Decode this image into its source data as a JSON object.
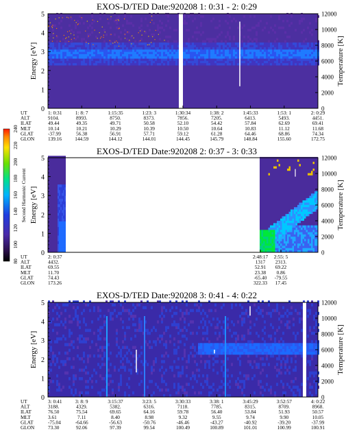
{
  "colorbar": {
    "label": "Second Harmonic Current",
    "ticks": [
      "80",
      "100",
      "120",
      "140",
      "160",
      "180",
      "200",
      "220",
      "240"
    ]
  },
  "panels": [
    {
      "title": "EXOS-D/TED   Date:920208  1: 0:31 - 2: 0:29",
      "ylabel": "Energy [eV]",
      "y2label": "Temperature [K]",
      "yticks": [
        "0",
        "1",
        "2",
        "3",
        "4",
        "5"
      ],
      "y2ticks": [
        "0",
        "2000",
        "4000",
        "6000",
        "8000",
        "10000",
        "12000"
      ],
      "eph_labels": [
        "UT",
        "ALT",
        "ILAT",
        "MLT",
        "GLAT",
        "GLON"
      ],
      "eph": [
        [
          "1: 0:31",
          "9104.",
          "49.44",
          "10.14",
          "-37.99",
          "139.16"
        ],
        [
          "1: 8: 7",
          "8993.",
          "49.35",
          "10.21",
          "56.38",
          "144.59"
        ],
        [
          "1:15:35",
          "8750.",
          "49.71",
          "10.29",
          "56.91",
          "144.12"
        ],
        [
          "1:23: 3",
          "8373.",
          "50.58",
          "10.39",
          "57.71",
          "144.01"
        ],
        [
          "1:30:34",
          "7856.",
          "52.10",
          "10.50",
          "59.12",
          "144.45"
        ],
        [
          "1:38: 2",
          "7205.",
          "54.42",
          "10.64",
          "61.28",
          "145.79"
        ],
        [
          "1:45:33",
          "6413.",
          "57.84",
          "10.83",
          "64.46",
          "148.84"
        ],
        [
          "1:53: 1",
          "5493.",
          "62.69",
          "11.12",
          "68.86",
          "155.60"
        ],
        [
          "2: 0:29",
          "4451.",
          "69.41",
          "11.68",
          "74.34",
          "172.75"
        ]
      ]
    },
    {
      "title": "EXOS-D/TED   Date:920208  2: 0:37 - 3: 0:33",
      "ylabel": "Energy [eV]",
      "y2label": "Temperature [K]",
      "yticks": [
        "0",
        "1",
        "2",
        "3",
        "4",
        "5"
      ],
      "y2ticks": [
        "0",
        "2000",
        "4000",
        "6000",
        "8000",
        "10000",
        "12000"
      ],
      "eph_labels": [
        "UT",
        "ALT",
        "ILAT",
        "MLT",
        "GLAT",
        "GLON"
      ],
      "eph": [
        [
          "2: 0:37",
          "4432.",
          "69.55",
          "11.70",
          "74.43",
          "173.26"
        ],
        [
          "2:48:17",
          "1317",
          "52.91",
          "23.38",
          "-65.40",
          "322.33"
        ],
        [
          "2:55: 5",
          "2313.",
          "69.22",
          "0.86",
          "-79.55",
          "17.45"
        ]
      ]
    },
    {
      "title": "EXOS-D/TED   Date:920208  3: 0:41 - 4: 0:22",
      "ylabel": "Energy [eV]",
      "y2label": "Temperature [K]",
      "yticks": [
        "0",
        "1",
        "2",
        "3",
        "4",
        "5"
      ],
      "y2ticks": [
        "0",
        "2000",
        "4000",
        "6000",
        "8000",
        "10000",
        "12000"
      ],
      "eph_labels": [
        "UT",
        "ALT",
        "ILAT",
        "MLT",
        "GLAT",
        "GLON"
      ],
      "eph": [
        [
          "3: 0:41",
          "3188.",
          "76.50",
          "3.61",
          "-75.04",
          "73.30"
        ],
        [
          "3: 8: 9",
          "4329.",
          "75.54",
          "7.11",
          "-64.66",
          "92.06"
        ],
        [
          "3:15:37",
          "5382.",
          "69.65",
          "8.40",
          "-56.63",
          "97.39"
        ],
        [
          "3:23: 5",
          "6316.",
          "64.16",
          "8.98",
          "-50.76",
          "99.54"
        ],
        [
          "3:30:33",
          "7118.",
          "59.78",
          "9.32",
          "-46.46",
          "100.49"
        ],
        [
          "3:38: 1",
          "7785.",
          "56.40",
          "9.55",
          "-43.27",
          "100.89"
        ],
        [
          "3:45:29",
          "8315.",
          "53.84",
          "9.74",
          "-40.92",
          "101.01"
        ],
        [
          "3:52:57",
          "8709.",
          "51.93",
          "9.90",
          "-39.20",
          "100.99"
        ],
        [
          "4: 0:22",
          "8968.",
          "50.57",
          "10.05",
          "-37.99",
          "100.91"
        ]
      ]
    }
  ],
  "chart_data": [
    {
      "type": "heatmap",
      "title": "EXOS-D/TED   Date:920208  1: 0:31 - 2: 0:29",
      "x_range": [
        "1: 0:31",
        "2: 0:29"
      ],
      "ylim": [
        0,
        5
      ],
      "y2lim": [
        0,
        12000
      ],
      "ylabel": "Energy [eV]",
      "y2label": "Temperature [K]",
      "features": [
        {
          "kind": "band",
          "from_ut": "1: 0:31",
          "to_ut": "2: 0:29",
          "energy_eV": 2.8
        },
        {
          "kind": "data_gap",
          "at_ut": "1:30:34"
        },
        {
          "kind": "temperature_trace",
          "at_ut": "1:45:33",
          "temp_K_min": 2800,
          "temp_K_max": 11000
        }
      ]
    },
    {
      "type": "heatmap",
      "title": "EXOS-D/TED   Date:920208  2: 0:37 - 3: 0:33",
      "x_range": [
        "2: 0:37",
        "3: 0:33"
      ],
      "ylim": [
        0,
        5
      ],
      "y2lim": [
        0,
        12000
      ],
      "ylabel": "Energy [eV]",
      "y2label": "Temperature [K]",
      "features": [
        {
          "kind": "data_segment",
          "from_ut": "2: 0:37",
          "to_ut": "2: 5:0"
        },
        {
          "kind": "data_gap",
          "from_ut": "2: 5:0",
          "to_ut": "2:48:17"
        },
        {
          "kind": "data_segment",
          "from_ut": "2:48:17",
          "to_ut": "3: 0:33"
        }
      ]
    },
    {
      "type": "heatmap",
      "title": "EXOS-D/TED   Date:920208  3: 0:41 - 4: 0:22",
      "x_range": [
        "3: 0:41",
        "4: 0:22"
      ],
      "ylim": [
        0,
        5
      ],
      "y2lim": [
        0,
        12000
      ],
      "ylabel": "Energy [eV]",
      "y2label": "Temperature [K]",
      "features": [
        {
          "kind": "band",
          "from_ut": "3:30:33",
          "to_ut": "4: 0:22",
          "energy_eV": 2.4
        },
        {
          "kind": "data_gap",
          "at_ut": "4: 0:22"
        }
      ]
    }
  ]
}
